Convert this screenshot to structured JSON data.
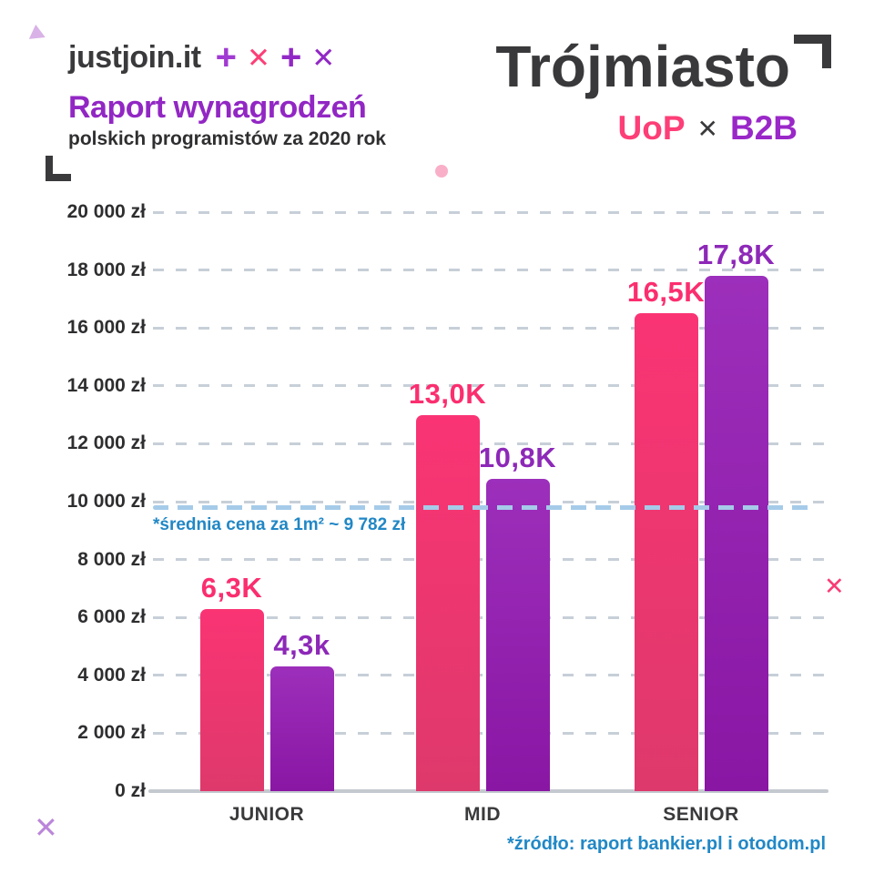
{
  "header": {
    "logo": "justjoin.it",
    "logo_marks": [
      {
        "icon": "plus-icon",
        "char": "+",
        "color": "#a13ad2"
      },
      {
        "icon": "x-icon",
        "char": "✕",
        "color": "#fd3e77"
      },
      {
        "icon": "plus-icon",
        "char": "+",
        "color": "#9128c5"
      },
      {
        "icon": "x-icon",
        "char": "✕",
        "color": "#9128c5"
      }
    ],
    "report_title": "Raport wynagrodzeń",
    "report_subtitle": "polskich programistów za 2020 rok",
    "city_title": "Trójmiasto",
    "legend": {
      "uop": "UoP",
      "separator": "✕",
      "b2b": "B2B"
    }
  },
  "chart_data": {
    "type": "bar",
    "title": "Trójmiasto — UoP vs B2B",
    "categories": [
      "JUNIOR",
      "MID",
      "SENIOR"
    ],
    "series": [
      {
        "name": "UoP",
        "color_top": "#fa3474",
        "color_bottom": "#de396c",
        "label_color": "#fb2e6f",
        "values": [
          6300,
          13000,
          16500
        ],
        "value_labels": [
          "6,3K",
          "13,0K",
          "16,5K"
        ]
      },
      {
        "name": "B2B",
        "color_top": "#9c2fbb",
        "color_bottom": "#8a16a4",
        "label_color": "#8d28b8",
        "values": [
          4300,
          10800,
          17800
        ],
        "value_labels": [
          "4,3k",
          "10,8K",
          "17,8K"
        ]
      }
    ],
    "ylim": [
      0,
      20000
    ],
    "ytick_step": 2000,
    "ytick_labels_top_to_bottom": [
      "20 000 zł",
      "18 000 zł",
      "16 000 zł",
      "14 000 zł",
      "12 000 zł",
      "10 000 zł",
      "8 000 zł",
      "6 000 zł",
      "4 000 zł",
      "2 000 zł",
      "0 zł"
    ],
    "grid": "dashed horizontal",
    "legend_position": "top-right",
    "reference_line": {
      "value": 9782,
      "label": "*średnia cena za 1m² ~ 9 782 zł",
      "label_color": "#2187c5",
      "line_color": "#a5cbe9"
    }
  },
  "footer": {
    "source": "*źródło: raport bankier.pl i otodom.pl",
    "color": "#2188c6"
  },
  "colors": {
    "dark_text": "#3a3a3c",
    "purple_heading": "#9227c4",
    "pink": "#fd3e77",
    "purple": "#9a27c8",
    "grid_dash": "#c7cfd8",
    "axis_line": "#c3c9cf",
    "decor_dot_pink": "#f9afc7",
    "decor_x_pink": "#fb3a74",
    "decor_x_purple": "#bb86da",
    "decor_triangle": "#d9b2e7"
  }
}
